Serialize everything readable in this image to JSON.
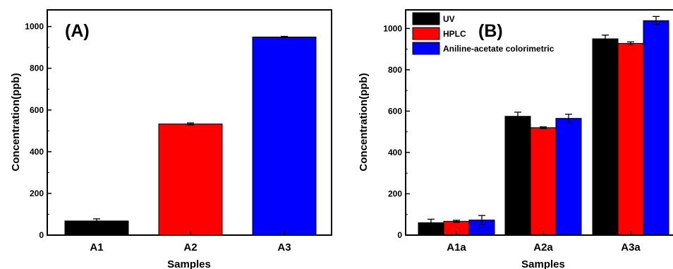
{
  "chart_data": [
    {
      "type": "bar",
      "panel_label": "(A)",
      "categories": [
        "A1",
        "A2",
        "A3"
      ],
      "values": [
        68,
        533,
        950
      ],
      "errors": [
        10,
        5,
        3
      ],
      "bar_colors": [
        "#000000",
        "#ff0000",
        "#0000ff"
      ],
      "xlabel": "Samples",
      "ylabel": "Concentration(ppb)",
      "ylim": [
        0,
        1080
      ],
      "yticks": [
        0,
        200,
        400,
        600,
        800,
        1000
      ],
      "ytick_labels": [
        "0",
        "200",
        "400",
        "600",
        "800",
        "1000"
      ],
      "grid": false
    },
    {
      "type": "bar",
      "panel_label": "(B)",
      "categories": [
        "A1a",
        "A2a",
        "A3a"
      ],
      "series": [
        {
          "name": "UV",
          "color": "#000000",
          "values": [
            60,
            575,
            950
          ],
          "errors": [
            17,
            20,
            18
          ]
        },
        {
          "name": "HPLC",
          "color": "#ff0000",
          "values": [
            67,
            520,
            928
          ],
          "errors": [
            5,
            4,
            7
          ]
        },
        {
          "name": "Aniline-acetate colorimetric",
          "color": "#0000ff",
          "values": [
            73,
            565,
            1038
          ],
          "errors": [
            22,
            20,
            20
          ]
        }
      ],
      "xlabel": "Samples",
      "ylabel": "Concentration(ppb)",
      "ylim": [
        0,
        1090
      ],
      "yticks": [
        0,
        200,
        400,
        600,
        800,
        1000
      ],
      "ytick_labels": [
        "0",
        "200",
        "400",
        "600",
        "800",
        "1000"
      ],
      "legend_position": "top-left",
      "grid": false
    }
  ]
}
